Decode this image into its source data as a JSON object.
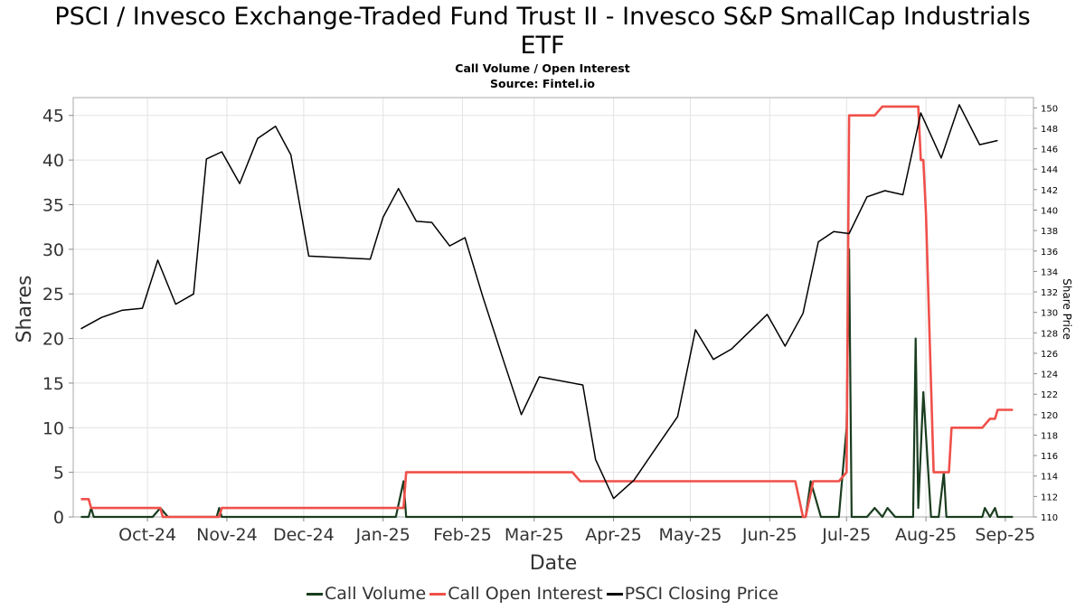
{
  "header": {
    "title_line1": "PSCI / Invesco Exchange-Traded Fund Trust II - Invesco S&P SmallCap Industrials",
    "title_line2": "ETF",
    "subtitle1": "Call Volume / Open Interest",
    "subtitle2": "Source: Fintel.io"
  },
  "legend": {
    "items": [
      {
        "label": "Call Volume",
        "color": "#1a3d1f"
      },
      {
        "label": "Call Open Interest",
        "color": "#f0504a"
      },
      {
        "label": "PSCI Closing Price",
        "color": "#000000"
      }
    ]
  },
  "chart_data": {
    "type": "line",
    "xlabel": "Date",
    "ylabel": "Shares",
    "y2label": "Share Price",
    "x_ticks": [
      "Oct-24",
      "Nov-24",
      "Dec-24",
      "Jan-25",
      "Feb-25",
      "Mar-25",
      "Apr-25",
      "May-25",
      "Jun-25",
      "Jul-25",
      "Aug-25",
      "Sep-25"
    ],
    "x_range": [
      "2024-09-17",
      "2025-09-27"
    ],
    "ylim": [
      0,
      47
    ],
    "y_ticks": [
      0,
      5,
      10,
      15,
      20,
      25,
      30,
      35,
      40,
      45
    ],
    "y2lim": [
      110,
      151
    ],
    "y2_ticks": [
      110,
      112,
      114,
      116,
      118,
      120,
      122,
      124,
      126,
      128,
      130,
      132,
      134,
      136,
      138,
      140,
      142,
      144,
      146,
      148,
      150
    ],
    "grid": true,
    "legend_position": "bottom",
    "series": [
      {
        "name": "Call Volume",
        "axis": "left",
        "color": "#1a3d1f",
        "points": [
          [
            "2024-09-20",
            0
          ],
          [
            "2024-09-23",
            0
          ],
          [
            "2024-09-24",
            1
          ],
          [
            "2024-09-25",
            0
          ],
          [
            "2024-10-18",
            0
          ],
          [
            "2024-10-21",
            1
          ],
          [
            "2024-10-24",
            0
          ],
          [
            "2024-11-12",
            0
          ],
          [
            "2024-11-13",
            1
          ],
          [
            "2024-11-14",
            0
          ],
          [
            "2025-01-21",
            0
          ],
          [
            "2025-01-24",
            4
          ],
          [
            "2025-01-25",
            0
          ],
          [
            "2025-06-30",
            0
          ],
          [
            "2025-07-02",
            4
          ],
          [
            "2025-07-06",
            0
          ],
          [
            "2025-07-13",
            0
          ],
          [
            "2025-07-16",
            10
          ],
          [
            "2025-07-17",
            30
          ],
          [
            "2025-07-18",
            0
          ],
          [
            "2025-07-24",
            0
          ],
          [
            "2025-07-27",
            1
          ],
          [
            "2025-07-30",
            0
          ],
          [
            "2025-08-01",
            1
          ],
          [
            "2025-08-04",
            0
          ],
          [
            "2025-08-11",
            0
          ],
          [
            "2025-08-12",
            20
          ],
          [
            "2025-08-13",
            1
          ],
          [
            "2025-08-15",
            14
          ],
          [
            "2025-08-18",
            0
          ],
          [
            "2025-08-21",
            0
          ],
          [
            "2025-08-23",
            5
          ],
          [
            "2025-08-24",
            0
          ],
          [
            "2025-09-07",
            0
          ],
          [
            "2025-09-08",
            1
          ],
          [
            "2025-09-10",
            0
          ],
          [
            "2025-09-12",
            1
          ],
          [
            "2025-09-13",
            0
          ],
          [
            "2025-09-19",
            0
          ]
        ]
      },
      {
        "name": "Call Open Interest",
        "axis": "left",
        "color": "#f0504a",
        "points": [
          [
            "2024-09-20",
            2
          ],
          [
            "2024-09-23",
            2
          ],
          [
            "2024-09-24",
            1
          ],
          [
            "2024-10-21",
            1
          ],
          [
            "2024-10-22",
            0
          ],
          [
            "2024-11-13",
            0
          ],
          [
            "2024-11-14",
            1
          ],
          [
            "2025-01-24",
            1
          ],
          [
            "2025-01-25",
            5
          ],
          [
            "2025-03-31",
            5
          ],
          [
            "2025-04-03",
            4
          ],
          [
            "2025-06-26",
            4
          ],
          [
            "2025-06-29",
            0
          ],
          [
            "2025-06-30",
            0
          ],
          [
            "2025-07-03",
            4
          ],
          [
            "2025-07-13",
            4
          ],
          [
            "2025-07-16",
            5
          ],
          [
            "2025-07-17",
            45
          ],
          [
            "2025-07-24",
            45
          ],
          [
            "2025-07-27",
            45
          ],
          [
            "2025-07-30",
            46
          ],
          [
            "2025-08-13",
            46
          ],
          [
            "2025-08-14",
            40
          ],
          [
            "2025-08-15",
            40
          ],
          [
            "2025-08-16",
            34
          ],
          [
            "2025-08-19",
            5
          ],
          [
            "2025-08-22",
            5
          ],
          [
            "2025-08-25",
            5
          ],
          [
            "2025-08-26",
            10
          ],
          [
            "2025-09-07",
            10
          ],
          [
            "2025-09-10",
            11
          ],
          [
            "2025-09-12",
            11
          ],
          [
            "2025-09-13",
            12
          ],
          [
            "2025-09-19",
            12
          ]
        ]
      },
      {
        "name": "PSCI Closing Price",
        "axis": "right",
        "color": "#000000",
        "points": [
          [
            "2024-09-20",
            128.4
          ],
          [
            "2024-09-28",
            129.5
          ],
          [
            "2024-10-06",
            130.2
          ],
          [
            "2024-10-14",
            130.4
          ],
          [
            "2024-10-20",
            135.1
          ],
          [
            "2024-10-27",
            130.8
          ],
          [
            "2024-11-03",
            131.8
          ],
          [
            "2024-11-08",
            145.0
          ],
          [
            "2024-11-14",
            145.7
          ],
          [
            "2024-11-21",
            142.6
          ],
          [
            "2024-11-28",
            147.0
          ],
          [
            "2024-12-05",
            148.2
          ],
          [
            "2024-12-11",
            145.4
          ],
          [
            "2024-12-18",
            135.5
          ],
          [
            "2025-01-11",
            135.2
          ],
          [
            "2025-01-16",
            139.3
          ],
          [
            "2025-01-22",
            142.1
          ],
          [
            "2025-01-29",
            138.9
          ],
          [
            "2025-02-04",
            138.8
          ],
          [
            "2025-02-11",
            136.5
          ],
          [
            "2025-02-17",
            137.3
          ],
          [
            "2025-02-24",
            131.5
          ],
          [
            "2025-03-04",
            125.3
          ],
          [
            "2025-03-11",
            120.0
          ],
          [
            "2025-03-18",
            123.7
          ],
          [
            "2025-04-04",
            122.9
          ],
          [
            "2025-04-09",
            115.6
          ],
          [
            "2025-04-16",
            111.8
          ],
          [
            "2025-04-24",
            113.6
          ],
          [
            "2025-05-03",
            116.9
          ],
          [
            "2025-05-11",
            119.8
          ],
          [
            "2025-05-18",
            128.3
          ],
          [
            "2025-05-25",
            125.4
          ],
          [
            "2025-06-01",
            126.4
          ],
          [
            "2025-06-15",
            129.8
          ],
          [
            "2025-06-22",
            126.7
          ],
          [
            "2025-06-29",
            129.9
          ],
          [
            "2025-07-05",
            136.9
          ],
          [
            "2025-07-11",
            137.9
          ],
          [
            "2025-07-17",
            137.7
          ],
          [
            "2025-07-24",
            141.3
          ],
          [
            "2025-07-31",
            141.9
          ],
          [
            "2025-08-07",
            141.5
          ],
          [
            "2025-08-14",
            149.5
          ],
          [
            "2025-08-22",
            145.1
          ],
          [
            "2025-08-29",
            150.3
          ],
          [
            "2025-09-06",
            146.4
          ],
          [
            "2025-09-13",
            146.8
          ]
        ]
      }
    ]
  }
}
